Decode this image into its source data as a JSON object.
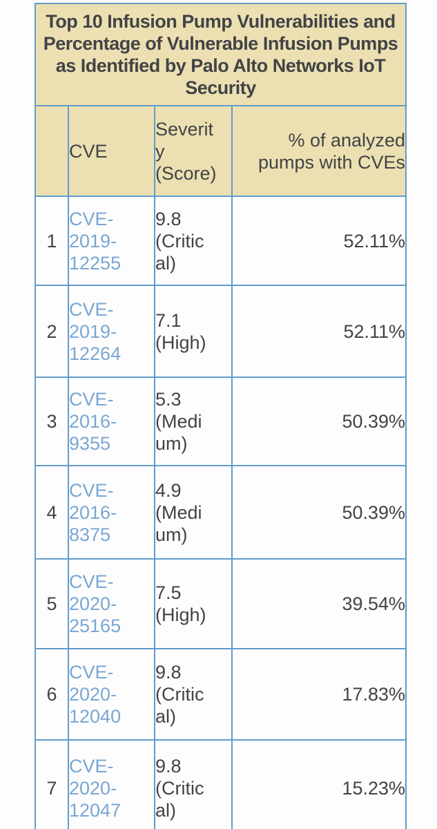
{
  "title": "Top 10 Infusion Pump Vulnerabilities and\nPercentage of Vulnerable Infusion Pumps\nas Identified by Palo Alto Networks IoT\nSecurity",
  "table": {
    "headers": {
      "rank": "",
      "cve": "CVE",
      "severity": "Severit\ny\n(Score)",
      "pct": "% of analyzed\npumps with CVEs"
    },
    "rows": [
      {
        "rank": "1",
        "cve": "CVE-\n2019-\n12255",
        "severity": "9.8\n(Critic\nal)",
        "pct": "52.11%"
      },
      {
        "rank": "2",
        "cve": "CVE-\n2019-\n12264",
        "severity": "7.1\n(High)",
        "pct": "52.11%"
      },
      {
        "rank": "3",
        "cve": "CVE-\n2016-\n9355",
        "severity": "5.3\n(Medi\num)",
        "pct": "50.39%"
      },
      {
        "rank": "4",
        "cve": "CVE-\n2016-\n8375",
        "severity": "4.9\n(Medi\num)",
        "pct": "50.39%"
      },
      {
        "rank": "5",
        "cve": "CVE-\n2020-\n25165",
        "severity": "7.5\n(High)",
        "pct": "39.54%"
      },
      {
        "rank": "6",
        "cve": "CVE-\n2020-\n12040",
        "severity": "9.8\n(Critic\nal)",
        "pct": "17.83%"
      },
      {
        "rank": "7",
        "cve": "CVE-\n2020-\n12047",
        "severity": "9.8\n(Critic\nal)",
        "pct": "15.23%"
      }
    ]
  },
  "chart_data": {
    "type": "table",
    "title": "Top 10 Infusion Pump Vulnerabilities and Percentage of Vulnerable Infusion Pumps as Identified by Palo Alto Networks IoT Security",
    "columns": [
      "#",
      "CVE",
      "Severity (Score)",
      "% of analyzed pumps with CVEs"
    ],
    "rows": [
      [
        "1",
        "CVE-2019-12255",
        "9.8 (Critical)",
        "52.11%"
      ],
      [
        "2",
        "CVE-2019-12264",
        "7.1 (High)",
        "52.11%"
      ],
      [
        "3",
        "CVE-2016-9355",
        "5.3 (Medium)",
        "50.39%"
      ],
      [
        "4",
        "CVE-2016-8375",
        "4.9 (Medium)",
        "50.39%"
      ],
      [
        "5",
        "CVE-2020-25165",
        "7.5 (High)",
        "39.54%"
      ],
      [
        "6",
        "CVE-2020-12040",
        "9.8 (Critical)",
        "17.83%"
      ],
      [
        "7",
        "CVE-2020-12047",
        "9.8 (Critical)",
        "15.23%"
      ]
    ]
  },
  "colors": {
    "header_bg": "#ece0b2",
    "border": "#619bca",
    "link": "#7aa6d3",
    "text": "#414346"
  }
}
